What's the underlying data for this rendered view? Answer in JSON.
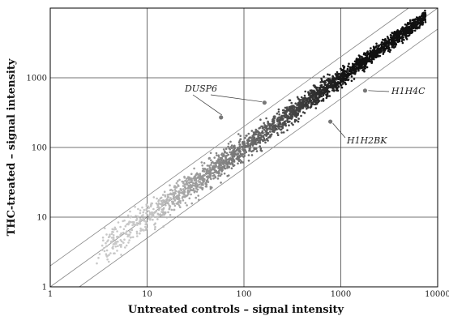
{
  "chart_data": {
    "type": "scatter",
    "title": "",
    "xlabel": "Untreated controls – signal intensity",
    "ylabel": "THC-treated – signal intensity",
    "x_scale": "log",
    "y_scale": "log",
    "xlim": [
      1,
      10000
    ],
    "ylim": [
      1,
      10000
    ],
    "x_ticks": [
      "1",
      "10",
      "100",
      "1000",
      "10000"
    ],
    "y_ticks": [
      "1",
      "10",
      "100",
      "1000"
    ],
    "grid": true,
    "reference_lines": [
      {
        "fold": 1
      },
      {
        "fold": 2
      },
      {
        "fold": 0.5
      }
    ],
    "cloud": {
      "x_range": [
        3,
        7500
      ],
      "point_color_low": "#c8c8c8",
      "point_color_high": "#111111"
    },
    "highlighted_genes": [
      {
        "label": "DUSP6",
        "points": [
          {
            "x": 58,
            "y": 270
          },
          {
            "x": 163,
            "y": 440
          }
        ]
      },
      {
        "label": "H1H4C",
        "points": [
          {
            "x": 1780,
            "y": 655
          }
        ]
      },
      {
        "label": "H1H2BK",
        "points": [
          {
            "x": 780,
            "y": 235
          }
        ]
      }
    ],
    "highlight_color": "#777777"
  }
}
